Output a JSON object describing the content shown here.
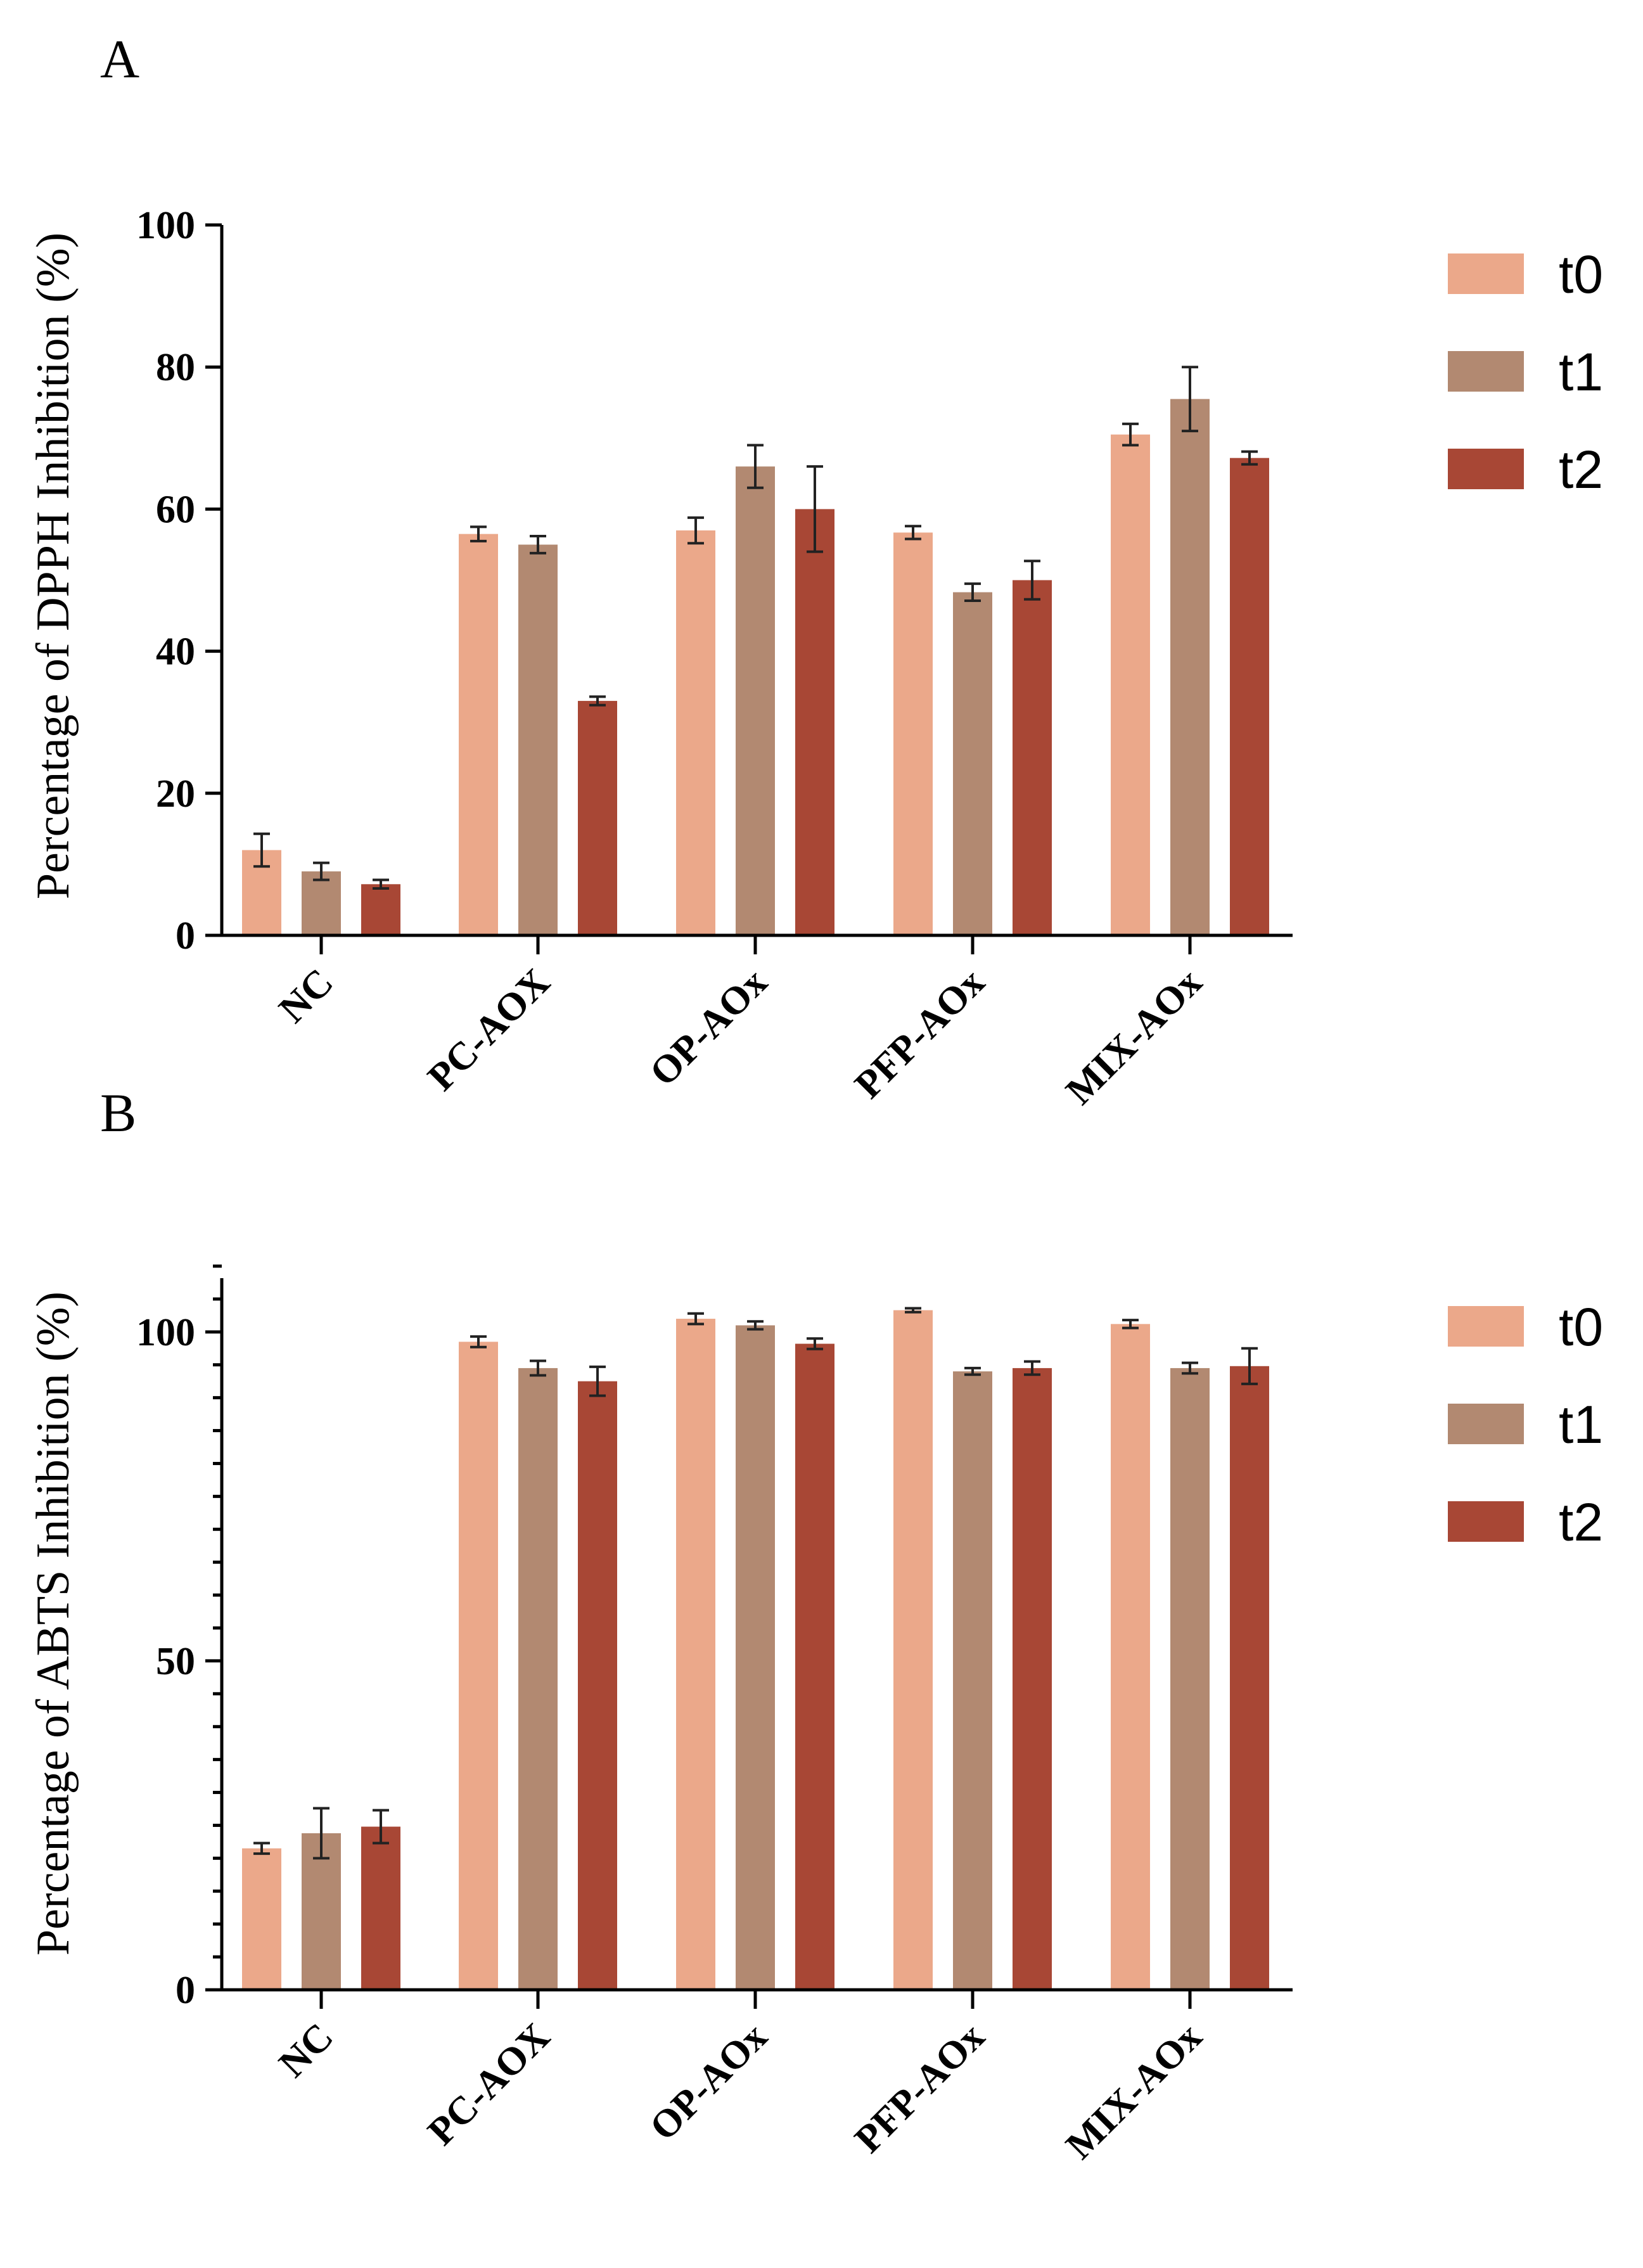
{
  "colors": {
    "t0": "#EBA88A",
    "t1": "#B28971",
    "t2": "#A84735"
  },
  "chart_data": [
    {
      "panel": "A",
      "type": "bar",
      "ylabel": "Percentage of DPPH Inhibition (%)",
      "ylim": [
        0,
        100
      ],
      "yticks": [
        0,
        20,
        40,
        60,
        80,
        100
      ],
      "minor_ticks": false,
      "categories": [
        "NC",
        "PC-AOX",
        "OP-AOx",
        "PFP-AOx",
        "MIX-AOx"
      ],
      "legend": [
        "t0",
        "t1",
        "t2"
      ],
      "series": [
        {
          "name": "t0",
          "values": [
            12,
            56.5,
            57,
            56.7,
            70.5
          ],
          "errors": [
            2.3,
            1.0,
            1.8,
            0.9,
            1.5
          ]
        },
        {
          "name": "t1",
          "values": [
            9,
            55,
            66,
            48.3,
            75.5
          ],
          "errors": [
            1.2,
            1.2,
            3.0,
            1.2,
            4.5
          ]
        },
        {
          "name": "t2",
          "values": [
            7.2,
            33,
            60,
            50,
            67.2
          ],
          "errors": [
            0.6,
            0.6,
            6.0,
            2.7,
            0.9
          ]
        }
      ]
    },
    {
      "panel": "B",
      "type": "bar",
      "ylabel": "Percentage of ABTS Inhibition (%)",
      "ylim": [
        0,
        110
      ],
      "yticks": [
        0,
        50,
        100
      ],
      "minor_ticks": true,
      "categories": [
        "NC",
        "PC-AOX",
        "OP-AOx",
        "PFP-AOx",
        "MIX-AOx"
      ],
      "legend": [
        "t0",
        "t1",
        "t2"
      ],
      "series": [
        {
          "name": "t0",
          "values": [
            21.5,
            98.5,
            102,
            103.3,
            101.2
          ],
          "errors": [
            0.8,
            0.8,
            0.8,
            0.3,
            0.6
          ]
        },
        {
          "name": "t1",
          "values": [
            23.8,
            94.5,
            101,
            94,
            94.5
          ],
          "errors": [
            3.8,
            1.1,
            0.6,
            0.5,
            0.8
          ]
        },
        {
          "name": "t2",
          "values": [
            24.8,
            92.5,
            98.2,
            94.5,
            94.8
          ],
          "errors": [
            2.5,
            2.2,
            0.8,
            1.0,
            2.7
          ]
        }
      ]
    }
  ]
}
